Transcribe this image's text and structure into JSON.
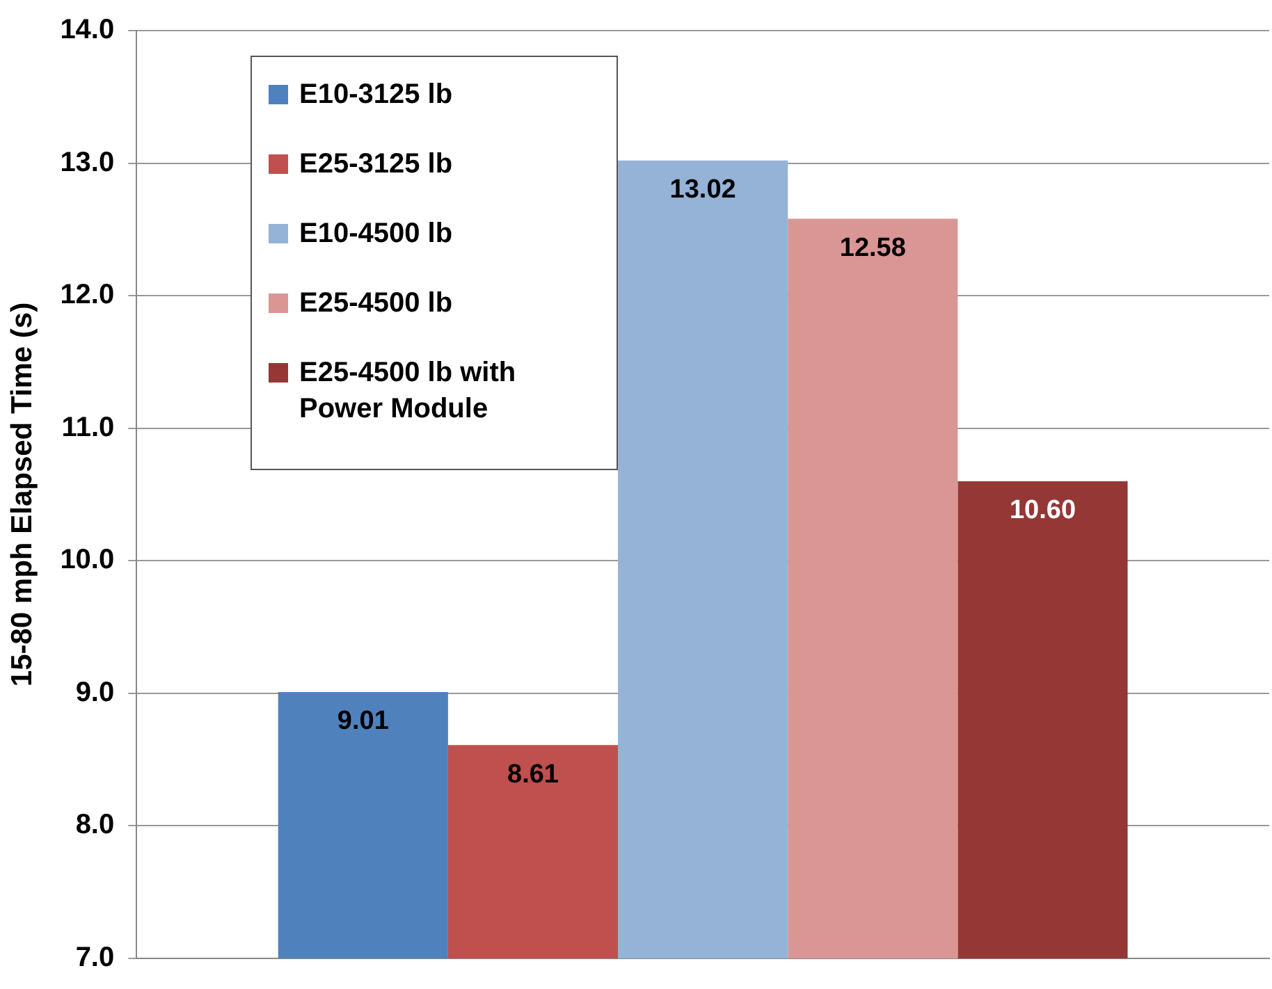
{
  "chart_data": {
    "type": "bar",
    "ylabel": "15-80 mph Elapsed Time (s)",
    "categories": [
      null
    ],
    "series": [
      {
        "name": "E10-3125 lb",
        "color": "#4f81bd",
        "values": [
          9.01
        ],
        "value_labels": [
          "9.01"
        ]
      },
      {
        "name": "E25-3125 lb",
        "color": "#c0504d",
        "values": [
          8.61
        ],
        "value_labels": [
          "8.61"
        ]
      },
      {
        "name": "E10-4500 lb",
        "color": "#95b3d7",
        "values": [
          13.02
        ],
        "value_labels": [
          "13.02"
        ]
      },
      {
        "name": "E25-4500 lb",
        "color": "#d99694",
        "values": [
          12.58
        ],
        "value_labels": [
          "12.58"
        ]
      },
      {
        "name": "E25-4500 lb with Power Module",
        "color": "#953735",
        "values": [
          10.6
        ],
        "value_labels": [
          "10.60"
        ]
      }
    ],
    "ylim": [
      7,
      14
    ],
    "yticks": [
      {
        "value": 7,
        "label": "7.0"
      },
      {
        "value": 8,
        "label": "8.0"
      },
      {
        "value": 9,
        "label": "9.0"
      },
      {
        "value": 10,
        "label": "10.0"
      },
      {
        "value": 11,
        "label": "11.0"
      },
      {
        "value": 12,
        "label": "12.0"
      },
      {
        "value": 13,
        "label": "13.0"
      },
      {
        "value": 14,
        "label": "14.0"
      }
    ],
    "grid": "y",
    "legend": "top left"
  }
}
